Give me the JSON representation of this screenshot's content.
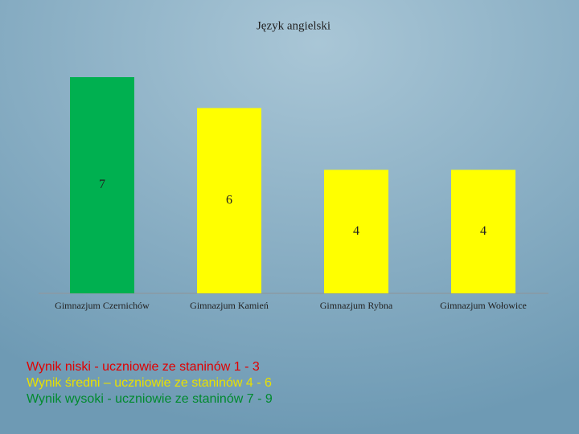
{
  "chart_data": {
    "type": "bar",
    "title": "Język angielski",
    "categories": [
      "Gimnazjum Czernichów",
      "Gimnazjum Kamień",
      "Gimnazjum Rybna",
      "Gimnazjum Wołowice"
    ],
    "values": [
      7,
      6,
      4,
      4
    ],
    "colors": [
      "#00b050",
      "#ffff00",
      "#ffff00",
      "#ffff00"
    ],
    "notes": [
      {
        "text": "Wynik niski - uczniowie ze staninów 1 - 3",
        "color": "#e00000"
      },
      {
        "text": "Wynik średni – uczniowie ze staninów 4 - 6",
        "color": "#e8e000"
      },
      {
        "text": "Wynik wysoki - uczniowie ze staninów 7 - 9",
        "color": "#008a2e"
      }
    ]
  }
}
